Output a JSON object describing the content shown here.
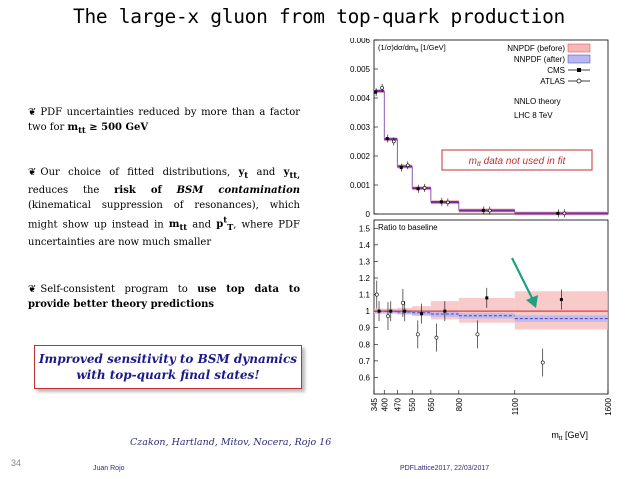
{
  "slide": {
    "title": "The large-x gluon from top-quark production",
    "number": "34",
    "footer_author": "Juan Rojo",
    "footer_venue": "PDFLattice2017, 22/03/2017"
  },
  "bullets": {
    "mark": "❦",
    "b1_text": "PDF uncertainties reduced by more than a factor two for",
    "b1_bold": "m",
    "b1_sub": "tt",
    "b1_bold2": " ≥ 500 GeV",
    "b2_a": "Our choice of fitted distributions,",
    "b2_y": "y",
    "b2_ysub": "t",
    "b2_and": "and",
    "b2_y2": "y",
    "b2_y2sub": "tt,",
    "b2_b": "reduces the",
    "b2_risk": "risk of",
    "b2_bsm": "BSM contamination",
    "b2_c": "(kinematical suppression of resonances), which might show up instead in",
    "b2_m": "m",
    "b2_msub": "tt",
    "b2_and2": "and",
    "b2_pt": "p",
    "b2_ptsup": "t",
    "b2_ptsub": "T",
    "b2_d": ", where PDF uncertainties are now much smaller",
    "b3_a": "Self-consistent program to",
    "b3_bold": "use top data to provide better theory predictions"
  },
  "callout": {
    "line1": "Improved sensitivity to BSM dynamics",
    "line2": "with top-quark final states!"
  },
  "citation": "Czakon, Hartland, Mitov, Nocera, Rojo 16",
  "chart_data": {
    "type": "scatter",
    "top_panel": {
      "ylabel": "(1/σ)dσ/dm",
      "ylabel_sub": "tt",
      "ylabel_unit": " [1/GeV]",
      "ylim": [
        0,
        0.006
      ],
      "yticks": [
        "0",
        "0.001",
        "0.002",
        "0.003",
        "0.004",
        "0.005",
        "0.006"
      ],
      "bin_edges": [
        345,
        400,
        470,
        550,
        650,
        800,
        1100,
        1600
      ],
      "nnpdf_before": [
        0.00424,
        0.00258,
        0.00164,
        0.00089,
        0.00041,
        0.00012,
        2e-05
      ],
      "nnpdf_after": [
        0.00424,
        0.00258,
        0.00164,
        0.00089,
        0.00041,
        0.00012,
        2e-05
      ],
      "cms": [
        0.0042,
        0.0026,
        0.0016,
        0.00087,
        0.00042,
        0.000125,
        2.1e-05
      ],
      "atlas": [
        0.00435,
        0.0025,
        0.00168,
        0.0009,
        0.0004,
        0.00012,
        2e-05
      ],
      "legend": [
        "NNPDF (before)",
        "NNPDF (after)",
        "CMS",
        "ATLAS"
      ],
      "note1": "NNLO theory",
      "note2": "LHC 8 TeV",
      "annotation": "m",
      "annotation_sub": "tt",
      "annotation_rest": " data not used in fit"
    },
    "ratio_panel": {
      "title": "Ratio to baseline",
      "ylim": [
        0.5,
        1.55
      ],
      "yticks": [
        "0.6",
        "0.7",
        "0.8",
        "0.9",
        "1",
        "1.1",
        "1.2",
        "1.3",
        "1.4",
        "1.5"
      ],
      "before_band": [
        [
          0.985,
          1.015
        ],
        [
          0.985,
          1.015
        ],
        [
          0.98,
          1.02
        ],
        [
          0.97,
          1.03
        ],
        [
          0.95,
          1.06
        ],
        [
          0.93,
          1.08
        ],
        [
          0.89,
          1.12
        ]
      ],
      "after_band": [
        [
          0.985,
          1.01
        ],
        [
          0.985,
          1.01
        ],
        [
          0.98,
          1.01
        ],
        [
          0.975,
          1.005
        ],
        [
          0.965,
          1.0
        ],
        [
          0.955,
          0.99
        ],
        [
          0.935,
          0.975
        ]
      ],
      "cms_points": [
        [
          372,
          1.0
        ],
        [
          435,
          1.0
        ],
        [
          510,
          1.0
        ],
        [
          600,
          0.985
        ],
        [
          725,
          1.0
        ],
        [
          950,
          1.08
        ],
        [
          1350,
          1.07
        ]
      ],
      "atlas_points": [
        [
          360,
          1.1
        ],
        [
          420,
          0.97
        ],
        [
          500,
          1.05
        ],
        [
          580,
          0.86
        ],
        [
          680,
          0.84
        ],
        [
          900,
          0.86
        ],
        [
          1250,
          0.69
        ]
      ],
      "xlabel": "m",
      "xlabel_sub": "tt",
      "xlabel_unit": " [GeV]",
      "xticks": [
        "345",
        "400",
        "470",
        "550",
        "650",
        "800",
        "1100",
        "1600"
      ]
    },
    "colors": {
      "before_band": "#f5b8b8",
      "before_line": "#e04040",
      "after_band": "#b8b8f0",
      "after_line": "#4040c0",
      "purple": "#7030a0",
      "arrow": "#20a080"
    }
  }
}
